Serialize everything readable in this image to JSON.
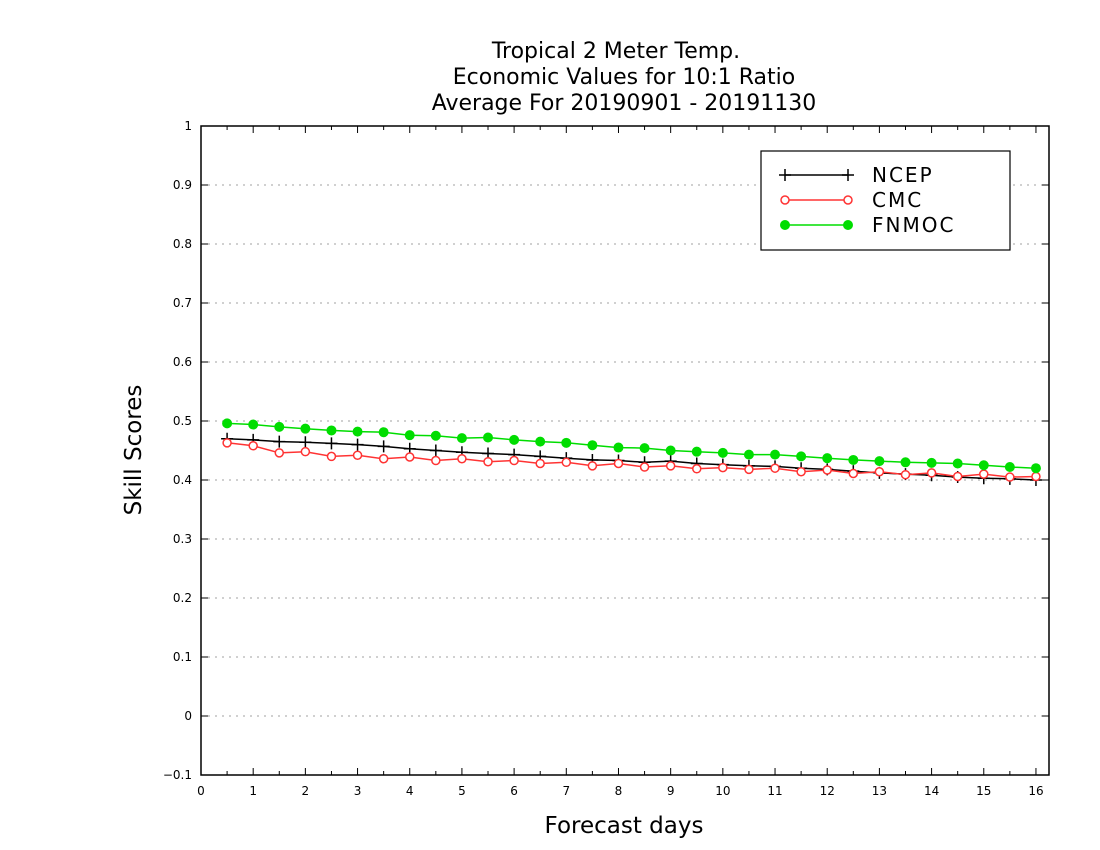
{
  "chart_data": {
    "type": "line",
    "title_lines": [
      "Tropical 2 Meter Temp.",
      "Economic Values for 10:1 Ratio",
      "Average For 20190901 - 20191130"
    ],
    "xlabel": "Forecast days",
    "ylabel": "Skill Scores",
    "xlim": [
      0,
      16.25
    ],
    "ylim": [
      -0.1,
      1
    ],
    "x_ticks": [
      0,
      1,
      2,
      3,
      4,
      5,
      6,
      7,
      8,
      9,
      10,
      11,
      12,
      13,
      14,
      15,
      16
    ],
    "y_ticks": [
      -0.1,
      0,
      0.1,
      0.2,
      0.3,
      0.4,
      0.5,
      0.6,
      0.7,
      0.8,
      0.9,
      1
    ],
    "grid": "dotted horizontal",
    "legend_position": "top-right",
    "x": [
      0.5,
      1,
      1.5,
      2,
      2.5,
      3,
      3.5,
      4,
      4.5,
      5,
      5.5,
      6,
      6.5,
      7,
      7.5,
      8,
      8.5,
      9,
      9.5,
      10,
      10.5,
      11,
      11.5,
      12,
      12.5,
      13,
      13.5,
      14,
      14.5,
      15,
      15.5,
      16
    ],
    "series": [
      {
        "name": "NCEP",
        "color": "#000000",
        "marker": "plus",
        "values": [
          0.47,
          0.468,
          0.465,
          0.464,
          0.462,
          0.46,
          0.457,
          0.453,
          0.45,
          0.447,
          0.445,
          0.443,
          0.44,
          0.437,
          0.434,
          0.433,
          0.43,
          0.432,
          0.428,
          0.426,
          0.424,
          0.423,
          0.42,
          0.418,
          0.415,
          0.412,
          0.41,
          0.408,
          0.405,
          0.403,
          0.402,
          0.4
        ]
      },
      {
        "name": "CMC",
        "color": "#ff3333",
        "marker": "open-circle",
        "values": [
          0.463,
          0.458,
          0.446,
          0.448,
          0.44,
          0.442,
          0.436,
          0.439,
          0.433,
          0.436,
          0.431,
          0.433,
          0.428,
          0.43,
          0.424,
          0.428,
          0.422,
          0.424,
          0.419,
          0.421,
          0.418,
          0.42,
          0.414,
          0.417,
          0.411,
          0.414,
          0.409,
          0.412,
          0.406,
          0.41,
          0.405,
          0.406
        ]
      },
      {
        "name": "FNMOC",
        "color": "#00dd00",
        "marker": "filled-circle",
        "values": [
          0.496,
          0.494,
          0.49,
          0.487,
          0.484,
          0.482,
          0.481,
          0.476,
          0.475,
          0.471,
          0.472,
          0.468,
          0.465,
          0.463,
          0.459,
          0.455,
          0.454,
          0.45,
          0.448,
          0.446,
          0.443,
          0.443,
          0.44,
          0.437,
          0.434,
          0.432,
          0.43,
          0.429,
          0.428,
          0.425,
          0.422,
          0.42
        ]
      }
    ]
  }
}
